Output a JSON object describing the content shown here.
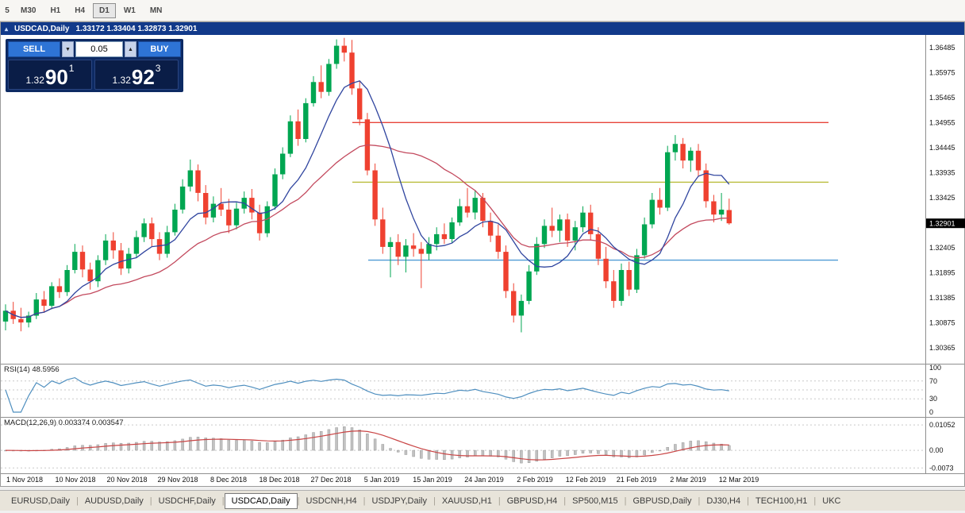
{
  "icons": {
    "chart": "▴",
    "volume_down": "▼",
    "volume_up": "▲"
  },
  "tab_separator": "|",
  "toolbar": {
    "timeframes": [
      {
        "label": "5",
        "active": false,
        "partial": true
      },
      {
        "label": "M30",
        "active": false
      },
      {
        "label": "H1",
        "active": false
      },
      {
        "label": "H4",
        "active": false
      },
      {
        "label": "D1",
        "active": true
      },
      {
        "label": "W1",
        "active": false
      },
      {
        "label": "MN",
        "active": false
      }
    ]
  },
  "chart": {
    "symbol_period": "USDCAD,Daily",
    "ohlc_text": "1.33172 1.33404 1.32873 1.32901"
  },
  "trade_panel": {
    "sell_label": "SELL",
    "buy_label": "BUY",
    "volume": "0.05",
    "bid": {
      "prefix": "1.32",
      "big": "90",
      "sup": "1"
    },
    "ask": {
      "prefix": "1.32",
      "big": "92",
      "sup": "3"
    }
  },
  "price_axis": {
    "labels": [
      "1.36485",
      "1.35975",
      "1.35465",
      "1.34955",
      "1.34445",
      "1.33935",
      "1.33425",
      "1.32405",
      "1.31895",
      "1.31385",
      "1.30875",
      "1.30365"
    ],
    "current": "1.32901"
  },
  "colors": {
    "bull": "#00a651",
    "bear": "#ef4130",
    "ma_fast": "#30459f",
    "ma_slow": "#c34a5e",
    "rsi_line": "#4f8fbf",
    "macd_signal": "#c94545",
    "macd_hist_fill": "#c2c2c2",
    "macd_hist_stroke": "#9a9a9a",
    "grid_dash": "#c9c9c9",
    "axis_line": "#8f8f8f",
    "badge_bg": "#000000"
  },
  "chart_data": {
    "type": "candlestick",
    "symbol": "USDCAD",
    "timeframe": "Daily",
    "ohlc_display": {
      "open": "1.33172",
      "high": "1.33404",
      "low": "1.32873",
      "close": "1.32901"
    },
    "price_range": [
      1.3004,
      1.3674
    ],
    "candles": [
      [
        1.309,
        1.3125,
        1.3072,
        1.3112
      ],
      [
        1.3112,
        1.313,
        1.3085,
        1.3095
      ],
      [
        1.3095,
        1.3118,
        1.307,
        1.3088
      ],
      [
        1.3088,
        1.311,
        1.3078,
        1.3102
      ],
      [
        1.3102,
        1.3148,
        1.3095,
        1.3135
      ],
      [
        1.3135,
        1.3152,
        1.3108,
        1.3122
      ],
      [
        1.3122,
        1.317,
        1.3115,
        1.3162
      ],
      [
        1.3162,
        1.3178,
        1.3138,
        1.315
      ],
      [
        1.315,
        1.3205,
        1.3142,
        1.3195
      ],
      [
        1.3195,
        1.3248,
        1.3188,
        1.3232
      ],
      [
        1.3232,
        1.3245,
        1.318,
        1.3196
      ],
      [
        1.3196,
        1.321,
        1.3155,
        1.3172
      ],
      [
        1.3172,
        1.3225,
        1.316,
        1.3215
      ],
      [
        1.3215,
        1.3268,
        1.3205,
        1.3255
      ],
      [
        1.3255,
        1.3272,
        1.3218,
        1.3235
      ],
      [
        1.3235,
        1.325,
        1.3185,
        1.3198
      ],
      [
        1.3198,
        1.324,
        1.3188,
        1.3228
      ],
      [
        1.3228,
        1.3275,
        1.322,
        1.3262
      ],
      [
        1.3262,
        1.33,
        1.3252,
        1.329
      ],
      [
        1.329,
        1.3302,
        1.3242,
        1.3258
      ],
      [
        1.3258,
        1.3272,
        1.3215,
        1.3228
      ],
      [
        1.3228,
        1.3285,
        1.322,
        1.3272
      ],
      [
        1.3272,
        1.333,
        1.3265,
        1.3318
      ],
      [
        1.3318,
        1.338,
        1.331,
        1.3365
      ],
      [
        1.3365,
        1.342,
        1.3355,
        1.3398
      ],
      [
        1.3398,
        1.341,
        1.3335,
        1.3352
      ],
      [
        1.3352,
        1.3368,
        1.3288,
        1.3302
      ],
      [
        1.3302,
        1.3345,
        1.3292,
        1.333
      ],
      [
        1.333,
        1.3362,
        1.3305,
        1.3318
      ],
      [
        1.3318,
        1.334,
        1.327,
        1.3286
      ],
      [
        1.3286,
        1.3332,
        1.3278,
        1.332
      ],
      [
        1.332,
        1.3355,
        1.331,
        1.3342
      ],
      [
        1.3342,
        1.336,
        1.3298,
        1.3312
      ],
      [
        1.3312,
        1.3328,
        1.3255,
        1.327
      ],
      [
        1.327,
        1.3335,
        1.3262,
        1.3325
      ],
      [
        1.3325,
        1.3402,
        1.3318,
        1.339
      ],
      [
        1.339,
        1.3445,
        1.338,
        1.3432
      ],
      [
        1.3432,
        1.351,
        1.3425,
        1.3498
      ],
      [
        1.3498,
        1.3522,
        1.3448,
        1.3462
      ],
      [
        1.3462,
        1.3545,
        1.3455,
        1.3535
      ],
      [
        1.3535,
        1.359,
        1.3528,
        1.3578
      ],
      [
        1.3578,
        1.3612,
        1.3545,
        1.3558
      ],
      [
        1.3558,
        1.3625,
        1.355,
        1.3615
      ],
      [
        1.3615,
        1.3665,
        1.3605,
        1.3652
      ],
      [
        1.3652,
        1.3668,
        1.362,
        1.3638
      ],
      [
        1.3638,
        1.3664,
        1.3552,
        1.3565
      ],
      [
        1.3565,
        1.358,
        1.349,
        1.3502
      ],
      [
        1.3502,
        1.3515,
        1.3388,
        1.3398
      ],
      [
        1.3398,
        1.3412,
        1.3285,
        1.3298
      ],
      [
        1.3298,
        1.3322,
        1.3228,
        1.3242
      ],
      [
        1.3242,
        1.3262,
        1.318,
        1.3252
      ],
      [
        1.3252,
        1.3268,
        1.3205,
        1.3222
      ],
      [
        1.3222,
        1.3258,
        1.319,
        1.3245
      ],
      [
        1.3245,
        1.327,
        1.3222,
        1.3238
      ],
      [
        1.3238,
        1.3252,
        1.3158,
        1.3228
      ],
      [
        1.3228,
        1.3262,
        1.3215,
        1.3248
      ],
      [
        1.3248,
        1.3282,
        1.3235,
        1.3268
      ],
      [
        1.3268,
        1.329,
        1.3248,
        1.3258
      ],
      [
        1.3258,
        1.3302,
        1.325,
        1.3292
      ],
      [
        1.3292,
        1.334,
        1.3285,
        1.3325
      ],
      [
        1.3325,
        1.3362,
        1.3302,
        1.3312
      ],
      [
        1.3312,
        1.3358,
        1.3298,
        1.3342
      ],
      [
        1.3342,
        1.3352,
        1.3282,
        1.3295
      ],
      [
        1.3295,
        1.3312,
        1.3252,
        1.3265
      ],
      [
        1.3265,
        1.3288,
        1.3218,
        1.3232
      ],
      [
        1.3232,
        1.3245,
        1.3138,
        1.3152
      ],
      [
        1.3152,
        1.3168,
        1.3088,
        1.3102
      ],
      [
        1.3102,
        1.3145,
        1.3068,
        1.3132
      ],
      [
        1.3132,
        1.3205,
        1.3125,
        1.3192
      ],
      [
        1.3192,
        1.3262,
        1.3185,
        1.3248
      ],
      [
        1.3248,
        1.3298,
        1.324,
        1.3285
      ],
      [
        1.3285,
        1.3322,
        1.3262,
        1.3275
      ],
      [
        1.3275,
        1.3308,
        1.3252,
        1.3298
      ],
      [
        1.3298,
        1.331,
        1.3242,
        1.3255
      ],
      [
        1.3255,
        1.3295,
        1.3235,
        1.3282
      ],
      [
        1.3282,
        1.3325,
        1.3272,
        1.3312
      ],
      [
        1.3312,
        1.3328,
        1.3255,
        1.3268
      ],
      [
        1.3268,
        1.3282,
        1.3205,
        1.3218
      ],
      [
        1.3218,
        1.3242,
        1.3158,
        1.3172
      ],
      [
        1.3172,
        1.3195,
        1.3118,
        1.3132
      ],
      [
        1.3132,
        1.3208,
        1.3122,
        1.3195
      ],
      [
        1.3195,
        1.3212,
        1.3142,
        1.3155
      ],
      [
        1.3155,
        1.3238,
        1.3148,
        1.3225
      ],
      [
        1.3225,
        1.3302,
        1.3218,
        1.3288
      ],
      [
        1.3288,
        1.3352,
        1.328,
        1.3338
      ],
      [
        1.3338,
        1.3362,
        1.3308,
        1.3322
      ],
      [
        1.3322,
        1.3448,
        1.3315,
        1.3435
      ],
      [
        1.3435,
        1.347,
        1.3418,
        1.3452
      ],
      [
        1.3452,
        1.3464,
        1.3402,
        1.3418
      ],
      [
        1.3418,
        1.3445,
        1.3395,
        1.3438
      ],
      [
        1.3438,
        1.3452,
        1.3385,
        1.3398
      ],
      [
        1.3398,
        1.3412,
        1.3322,
        1.3335
      ],
      [
        1.3335,
        1.3348,
        1.3292,
        1.3308
      ],
      [
        1.3308,
        1.3352,
        1.3295,
        1.3318
      ],
      [
        1.33172,
        1.33404,
        1.32873,
        1.32901
      ]
    ],
    "ma_fast_period": 8,
    "ma_slow_period": 20,
    "hlines": [
      {
        "price": 1.34955,
        "color": "#e8443a",
        "x1": 0.38,
        "x2": 0.895
      },
      {
        "price": 1.3374,
        "color": "#b9bd3a",
        "x1": 0.38,
        "x2": 0.895
      },
      {
        "price": 1.3215,
        "color": "#4f9bd5",
        "x1": 0.397,
        "x2": 0.906
      }
    ],
    "indicators": {
      "rsi": {
        "label": "RSI(14) 48.5956",
        "period": 14,
        "value": 48.5956,
        "axis_labels": [
          {
            "label": "100",
            "value": 100
          },
          {
            "label": "70",
            "value": 70
          },
          {
            "label": "30",
            "value": 30
          },
          {
            "label": "0",
            "value": 0
          }
        ],
        "dashed_levels": [
          70,
          50,
          30
        ]
      },
      "macd": {
        "label": "MACD(12,26,9) 0.003374 0.003547",
        "fast": 12,
        "slow": 26,
        "signal": 9,
        "value": 0.003374,
        "signal_value": 0.003547,
        "range": [
          -0.0095,
          0.0135
        ],
        "axis_labels": [
          {
            "label": "0.01052",
            "value": 0.01052
          },
          {
            "label": "0.00",
            "value": 0
          },
          {
            "label": "-0.0073",
            "value": -0.0073
          }
        ]
      }
    },
    "time_axis": [
      {
        "label": "1 Nov 2018",
        "x": 0.0258
      },
      {
        "label": "10 Nov 2018",
        "x": 0.0809
      },
      {
        "label": "20 Nov 2018",
        "x": 0.1361
      },
      {
        "label": "29 Nov 2018",
        "x": 0.1913
      },
      {
        "label": "8 Dec 2018",
        "x": 0.2465
      },
      {
        "label": "18 Dec 2018",
        "x": 0.3016
      },
      {
        "label": "27 Dec 2018",
        "x": 0.3568
      },
      {
        "label": "5 Jan 2019",
        "x": 0.412
      },
      {
        "label": "15 Jan 2019",
        "x": 0.4672
      },
      {
        "label": "24 Jan 2019",
        "x": 0.5224
      },
      {
        "label": "2 Feb 2019",
        "x": 0.5775
      },
      {
        "label": "12 Feb 2019",
        "x": 0.6327
      },
      {
        "label": "21 Feb 2019",
        "x": 0.6879
      },
      {
        "label": "2 Mar 2019",
        "x": 0.7431
      },
      {
        "label": "12 Mar 2019",
        "x": 0.7983
      }
    ]
  },
  "tabs": [
    {
      "label": "EURUSD,Daily",
      "active": false
    },
    {
      "label": "AUDUSD,Daily",
      "active": false
    },
    {
      "label": "USDCHF,Daily",
      "active": false
    },
    {
      "label": "USDCAD,Daily",
      "active": true
    },
    {
      "label": "USDCNH,H4",
      "active": false
    },
    {
      "label": "USDJPY,Daily",
      "active": false
    },
    {
      "label": "XAUUSD,H1",
      "active": false
    },
    {
      "label": "GBPUSD,H4",
      "active": false
    },
    {
      "label": "SP500,M15",
      "active": false
    },
    {
      "label": "GBPUSD,Daily",
      "active": false
    },
    {
      "label": "DJ30,H4",
      "active": false
    },
    {
      "label": "TECH100,H1",
      "active": false
    },
    {
      "label": "UKC",
      "active": false
    }
  ]
}
